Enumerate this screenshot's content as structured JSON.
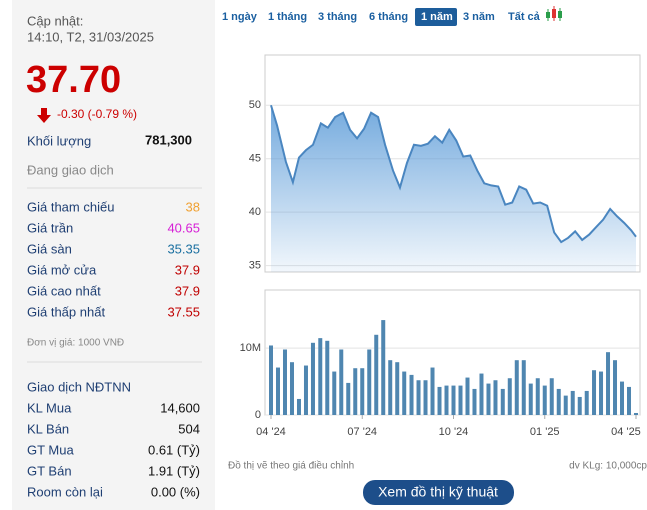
{
  "sidebar": {
    "updated_label": "Cập nhật:",
    "updated_time": "14:10, T2, 31/03/2025",
    "price": "37.70",
    "change": "-0.30 (-0.79 %)",
    "volume_label": "Khối lượng",
    "volume": "781,300",
    "status": "Đang giao dịch",
    "prices": [
      {
        "label": "Giá tham chiếu",
        "value": "38",
        "color": "#f0a030"
      },
      {
        "label": "Giá trần",
        "value": "40.65",
        "color": "#d61fd6"
      },
      {
        "label": "Giá sàn",
        "value": "35.35",
        "color": "#1a6fa0"
      },
      {
        "label": "Giá mở cửa",
        "value": "37.9",
        "color": "#c00000"
      },
      {
        "label": "Giá cao nhất",
        "value": "37.9",
        "color": "#c00000"
      },
      {
        "label": "Giá thấp nhất",
        "value": "37.55",
        "color": "#c00000"
      }
    ],
    "unit_note": "Đơn vị giá: 1000 VNĐ",
    "foreign_title": "Giao dịch NĐTNN",
    "foreign": [
      {
        "label": "KL Mua",
        "value": "14,600"
      },
      {
        "label": "KL Bán",
        "value": "504"
      },
      {
        "label": "GT Mua",
        "value": "0.61 (Tỷ)"
      },
      {
        "label": "GT Bán",
        "value": "1.91 (Tỷ)"
      },
      {
        "label": "Room còn lại",
        "value": "0.00 (%)"
      }
    ]
  },
  "tabs": {
    "items": [
      "1 ngày",
      "1 tháng",
      "3 tháng",
      "6 tháng",
      "1 năm",
      "3 năm",
      "Tất cả"
    ],
    "active": 4
  },
  "chart_data": [
    {
      "type": "area",
      "color": "#4a86c0",
      "x": [
        0,
        0.2,
        0.49,
        0.72,
        0.92,
        1.15,
        1.38,
        1.64,
        1.87,
        2.11,
        2.37,
        2.6,
        2.83,
        3.06,
        3.29,
        3.52,
        3.75,
        4.01,
        4.24,
        4.47,
        4.7,
        4.93,
        5.16,
        5.39,
        5.63,
        5.86,
        6.09,
        6.32,
        6.55,
        6.78,
        7.01,
        7.24,
        7.47,
        7.7,
        7.93,
        8.16,
        8.39,
        8.62,
        8.85,
        9.08,
        9.31,
        9.54,
        9.77,
        10.0,
        10.23,
        10.46,
        10.69,
        10.92,
        11.15,
        11.38,
        11.61,
        11.84,
        12.0
      ],
      "values": [
        50.0,
        48.1,
        44.7,
        42.8,
        45.1,
        45.8,
        46.3,
        48.3,
        47.9,
        48.9,
        49.3,
        47.7,
        46.9,
        47.8,
        49.3,
        48.9,
        46.3,
        43.9,
        42.3,
        44.6,
        46.3,
        46.2,
        46.4,
        47.1,
        46.5,
        47.7,
        46.7,
        45.2,
        45.3,
        43.9,
        42.7,
        42.5,
        42.4,
        40.7,
        40.9,
        42.4,
        42.1,
        40.8,
        40.9,
        40.6,
        38.1,
        37.2,
        37.6,
        38.2,
        37.4,
        37.9,
        38.6,
        39.3,
        40.3,
        39.6,
        39.0,
        38.3,
        37.7
      ],
      "xlim": [
        0,
        12
      ],
      "ylim": [
        34.4,
        54.7
      ],
      "yticks": [
        35,
        40,
        45,
        50
      ],
      "grid": true
    },
    {
      "type": "bar",
      "color": "#4f86b0",
      "x": [
        0,
        0.23,
        0.46,
        0.69,
        0.92,
        1.15,
        1.38,
        1.62,
        1.85,
        2.08,
        2.31,
        2.54,
        2.77,
        3.0,
        3.23,
        3.46,
        3.69,
        3.92,
        4.15,
        4.38,
        4.62,
        4.85,
        5.08,
        5.31,
        5.54,
        5.77,
        6.0,
        6.23,
        6.46,
        6.69,
        6.92,
        7.15,
        7.38,
        7.62,
        7.85,
        8.08,
        8.31,
        8.54,
        8.77,
        9.0,
        9.23,
        9.46,
        9.69,
        9.92,
        10.15,
        10.38,
        10.62,
        10.85,
        11.08,
        11.31,
        11.54,
        11.77,
        12.0
      ],
      "values": [
        10400000,
        7100000,
        9800000,
        7900000,
        2400000,
        7400000,
        10800000,
        11500000,
        11100000,
        6500000,
        9800000,
        4800000,
        7000000,
        7000000,
        9800000,
        12000000,
        14200000,
        8200000,
        7900000,
        6500000,
        6000000,
        5200000,
        5200000,
        7100000,
        4200000,
        4400000,
        4400000,
        4400000,
        5600000,
        3900000,
        6200000,
        4700000,
        5200000,
        3900000,
        5500000,
        8200000,
        8200000,
        4700000,
        5500000,
        4400000,
        5500000,
        3900000,
        2900000,
        3600000,
        2700000,
        3600000,
        6700000,
        6500000,
        9400000,
        8200000,
        5000000,
        4200000,
        300000
      ],
      "xlim": [
        0,
        12
      ],
      "ylim": [
        0,
        18700000
      ],
      "yticks": [
        0,
        {
          "value": 10000000,
          "label": "10M"
        }
      ],
      "xticks": [
        {
          "value": 0,
          "label": "04 '24"
        },
        {
          "value": 3,
          "label": "07 '24"
        },
        {
          "value": 6,
          "label": "10 '24"
        },
        {
          "value": 9,
          "label": "01 '25"
        },
        {
          "value": 12,
          "label": "04 '25"
        }
      ],
      "grid": true
    }
  ],
  "footnote": "Đồ thị vẽ theo giá điều chỉnh",
  "unit_volume": "dv KLg: 10,000cp",
  "button": "Xem đồ thị kỹ thuật"
}
